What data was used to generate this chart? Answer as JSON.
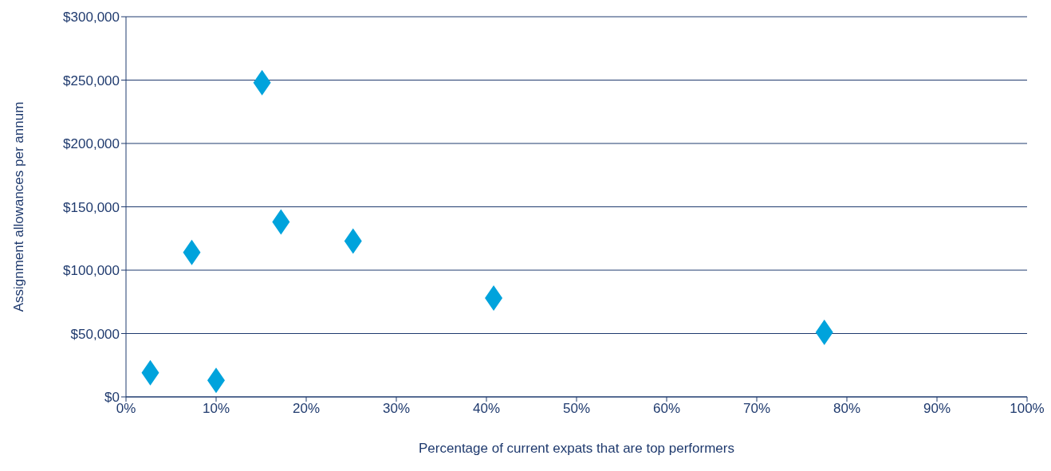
{
  "chart_data": {
    "type": "scatter",
    "xlabel": "Percentage of current expats that are top performers",
    "ylabel": "Assignment allowances per annum",
    "x": [
      2.7,
      7.3,
      10,
      15.1,
      17.2,
      25.2,
      40.8,
      77.5
    ],
    "values": [
      19000,
      114000,
      13000,
      248000,
      138000,
      123000,
      78000,
      51000
    ],
    "color": "#00a3dc",
    "marker": "diamond",
    "grid": "y",
    "xlim": [
      0,
      100
    ],
    "xticks": [
      {
        "value": 0,
        "label": "0%"
      },
      {
        "value": 10,
        "label": "10%"
      },
      {
        "value": 20,
        "label": "20%"
      },
      {
        "value": 30,
        "label": "30%"
      },
      {
        "value": 40,
        "label": "40%"
      },
      {
        "value": 50,
        "label": "50%"
      },
      {
        "value": 60,
        "label": "60%"
      },
      {
        "value": 70,
        "label": "70%"
      },
      {
        "value": 80,
        "label": "80%"
      },
      {
        "value": 90,
        "label": "90%"
      },
      {
        "value": 100,
        "label": "100%"
      }
    ],
    "ylim": [
      0,
      300000
    ],
    "yticks": [
      {
        "value": 0,
        "label": "$0"
      },
      {
        "value": 50000,
        "label": "$50,000"
      },
      {
        "value": 100000,
        "label": "$100,000"
      },
      {
        "value": 150000,
        "label": "$150,000"
      },
      {
        "value": 200000,
        "label": "$200,000"
      },
      {
        "value": 250000,
        "label": "$250,000"
      },
      {
        "value": 300000,
        "label": "$300,000"
      }
    ]
  }
}
